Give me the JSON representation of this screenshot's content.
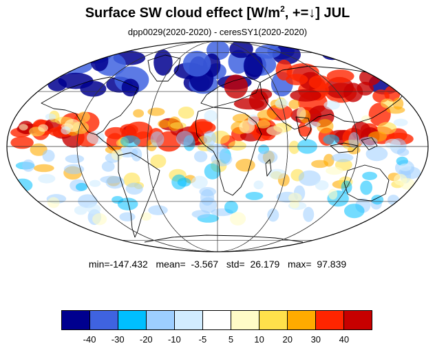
{
  "title": {
    "prefix": "Surface SW cloud effect [W/m",
    "superscript": "2",
    "suffix": ", +=↓]  JUL"
  },
  "subtitle": "dpp0029(2020-2020) - ceresSY1(2020-2020)",
  "stats": {
    "text": "min=-147.432   mean=  -3.567   std=  26.179   max=  97.839",
    "min": -147.432,
    "mean": -3.567,
    "std": 26.179,
    "max": 97.839
  },
  "map": {
    "projection": "mollweide",
    "field": "surface shortwave cloud radiative effect difference",
    "features": [
      "coastlines",
      "graticule"
    ]
  },
  "colorbar": {
    "colors": [
      "#00008f",
      "#3f63e0",
      "#00bfff",
      "#9dceff",
      "#d1ecff",
      "#ffffff",
      "#fffbc7",
      "#ffe14b",
      "#ffab00",
      "#ff2500",
      "#c70000"
    ],
    "tick_labels": [
      "-40",
      "-30",
      "-20",
      "-10",
      "-5",
      "5",
      "10",
      "20",
      "30",
      "40"
    ]
  }
}
